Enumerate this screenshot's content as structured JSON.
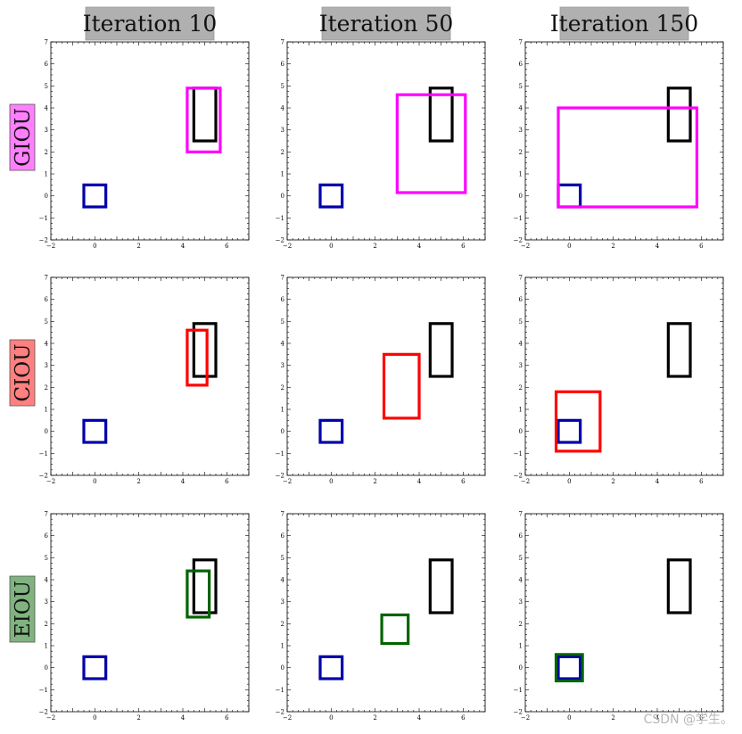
{
  "chart_data": {
    "type": "box-regression-grid",
    "title": "",
    "columns": [
      "Iteration 10",
      "Iteration 50",
      "Iteration 150"
    ],
    "rows": [
      {
        "label": "GIOU",
        "color": "#ff00ff",
        "label_bg": "#ff80ff"
      },
      {
        "label": "CIOU",
        "color": "#ff0000",
        "label_bg": "#ff8080"
      },
      {
        "label": "EIOU",
        "color": "#006400",
        "label_bg": "#80b380"
      }
    ],
    "xlim": [
      -2,
      7
    ],
    "ylim": [
      -2,
      7
    ],
    "x_ticks": [
      -2,
      0,
      2,
      4,
      6
    ],
    "y_ticks": [
      -2,
      -1,
      0,
      1,
      2,
      3,
      4,
      5,
      6,
      7
    ],
    "target_box": {
      "x1": 4.5,
      "y1": 2.5,
      "x2": 5.5,
      "y2": 4.9,
      "color": "#000000"
    },
    "anchor_box": {
      "x1": -0.5,
      "y1": -0.5,
      "x2": 0.5,
      "y2": 0.5,
      "color": "#0000aa"
    },
    "predicted_boxes": [
      [
        {
          "x1": 4.2,
          "y1": 2.0,
          "x2": 5.7,
          "y2": 4.9
        },
        {
          "x1": 3.0,
          "y1": 0.15,
          "x2": 6.1,
          "y2": 4.6
        },
        {
          "x1": -0.5,
          "y1": -0.5,
          "x2": 5.8,
          "y2": 4.0
        }
      ],
      [
        {
          "x1": 4.2,
          "y1": 2.1,
          "x2": 5.1,
          "y2": 4.6
        },
        {
          "x1": 2.4,
          "y1": 0.6,
          "x2": 4.0,
          "y2": 3.5
        },
        {
          "x1": -0.6,
          "y1": -0.9,
          "x2": 1.4,
          "y2": 1.8
        }
      ],
      [
        {
          "x1": 4.2,
          "y1": 2.3,
          "x2": 5.2,
          "y2": 4.4
        },
        {
          "x1": 2.3,
          "y1": 1.1,
          "x2": 3.5,
          "y2": 2.4
        },
        {
          "x1": -0.6,
          "y1": -0.6,
          "x2": 0.6,
          "y2": 0.6
        }
      ]
    ]
  },
  "watermark": "CSDN @学生。"
}
